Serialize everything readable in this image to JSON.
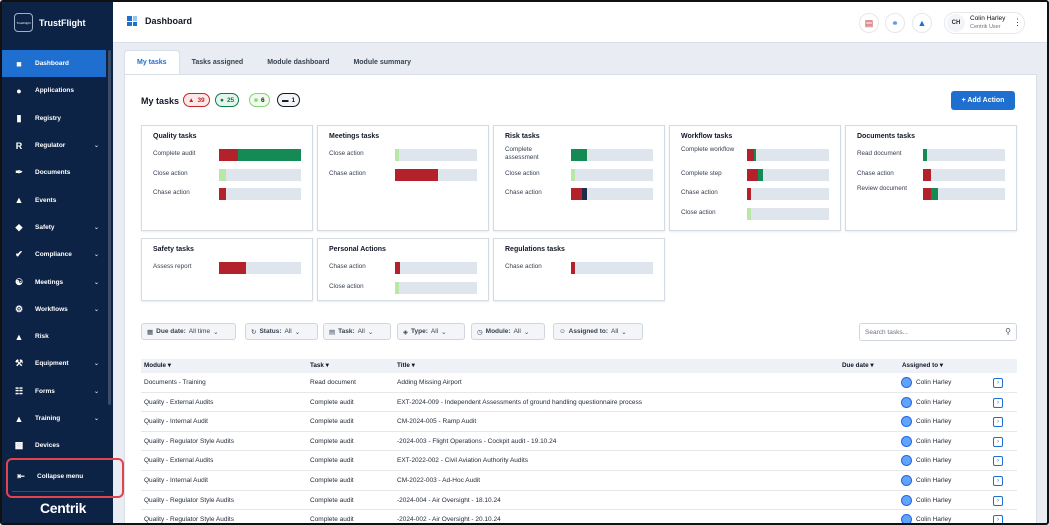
{
  "app": {
    "brand": "TrustFlight",
    "brand_logo_text": "TrustFlight",
    "footer_logo": "Centrik"
  },
  "sidebar": {
    "items": [
      {
        "label": "Dashboard",
        "icon": "dashboard-icon",
        "active": true,
        "chevron": false
      },
      {
        "label": "Applications",
        "icon": "person-icon",
        "active": false,
        "chevron": false
      },
      {
        "label": "Registry",
        "icon": "book-icon",
        "active": false,
        "chevron": false
      },
      {
        "label": "Regulator",
        "icon": "R",
        "active": false,
        "chevron": true
      },
      {
        "label": "Documents",
        "icon": "paperclip-icon",
        "active": false,
        "chevron": false
      },
      {
        "label": "Events",
        "icon": "megaphone-icon",
        "active": false,
        "chevron": false
      },
      {
        "label": "Safety",
        "icon": "shield-icon",
        "active": false,
        "chevron": true
      },
      {
        "label": "Compliance",
        "icon": "shield-check-icon",
        "active": false,
        "chevron": true
      },
      {
        "label": "Meetings",
        "icon": "people-icon",
        "active": false,
        "chevron": true
      },
      {
        "label": "Workflows",
        "icon": "workflow-icon",
        "active": false,
        "chevron": true
      },
      {
        "label": "Risk",
        "icon": "warning-icon",
        "active": false,
        "chevron": false
      },
      {
        "label": "Equipment",
        "icon": "wrench-icon",
        "active": false,
        "chevron": true
      },
      {
        "label": "Forms",
        "icon": "forms-icon",
        "active": false,
        "chevron": true
      },
      {
        "label": "Training",
        "icon": "graduation-icon",
        "active": false,
        "chevron": true
      },
      {
        "label": "Devices",
        "icon": "devices-icon",
        "active": false,
        "chevron": false
      }
    ],
    "collapse_label": "Collapse menu",
    "highlight_color": "#e0454d"
  },
  "header": {
    "title": "Dashboard",
    "user": {
      "initials": "CH",
      "name": "Colin Harley",
      "role": "Centrik User"
    }
  },
  "tabs": [
    {
      "label": "My tasks",
      "active": true
    },
    {
      "label": "Tasks assigned",
      "active": false
    },
    {
      "label": "Module dashboard",
      "active": false
    },
    {
      "label": "Module summary",
      "active": false
    }
  ],
  "my_tasks": {
    "title": "My tasks",
    "badges": [
      {
        "icon": "warning-icon",
        "count": "39",
        "color": "#c0272d",
        "bg": "#fde8e8"
      },
      {
        "icon": "circle-icon",
        "count": "25",
        "color": "#0d7a4a",
        "bg": "#e3f5ec"
      },
      {
        "icon": "square-light-icon",
        "count": "6",
        "color": "#86d17a",
        "bg": "#eefaea"
      },
      {
        "icon": "minus-box-icon",
        "count": "1",
        "color": "#111827",
        "bg": "#f3f4f6"
      }
    ],
    "add_action_label": "+ Add Action"
  },
  "colors": {
    "red": "#b3212b",
    "green": "#158a55",
    "light_green": "#b9e7a9",
    "navy": "#1c2b4a",
    "track": "#dfe5ec",
    "accent": "#1f6fd1"
  },
  "cards": [
    {
      "title": "Quality tasks",
      "rows": [
        {
          "label": "Complete audit",
          "segments": [
            {
              "pct": 23,
              "color": "#b3212b"
            },
            {
              "pct": 77,
              "color": "#158a55"
            }
          ]
        },
        {
          "label": "Close action",
          "segments": [
            {
              "pct": 8,
              "color": "#b9e7a9"
            }
          ]
        },
        {
          "label": "Chase action",
          "segments": [
            {
              "pct": 8,
              "color": "#b3212b"
            }
          ]
        }
      ]
    },
    {
      "title": "Meetings tasks",
      "rows": [
        {
          "label": "Close action",
          "segments": [
            {
              "pct": 5,
              "color": "#b9e7a9"
            }
          ]
        },
        {
          "label": "Chase action",
          "segments": [
            {
              "pct": 52,
              "color": "#b3212b"
            }
          ]
        }
      ]
    },
    {
      "title": "Risk tasks",
      "rows": [
        {
          "label": "Complete assessment",
          "segments": [
            {
              "pct": 19,
              "color": "#158a55"
            }
          ]
        },
        {
          "label": "Close action",
          "segments": [
            {
              "pct": 5,
              "color": "#b9e7a9"
            }
          ]
        },
        {
          "label": "Chase action",
          "segments": [
            {
              "pct": 14,
              "color": "#b3212b"
            },
            {
              "pct": 5,
              "color": "#1c2b4a"
            }
          ]
        }
      ]
    },
    {
      "title": "Workflow tasks",
      "rows": [
        {
          "label": "Complete workflow",
          "segments": [
            {
              "pct": 8,
              "color": "#b3212b"
            },
            {
              "pct": 3,
              "color": "#158a55"
            }
          ]
        },
        {
          "label": "Complete step",
          "segments": [
            {
              "pct": 14,
              "color": "#b3212b"
            },
            {
              "pct": 5,
              "color": "#158a55"
            }
          ]
        },
        {
          "label": "Chase action",
          "segments": [
            {
              "pct": 5,
              "color": "#b3212b"
            }
          ]
        },
        {
          "label": "Close action",
          "segments": [
            {
              "pct": 5,
              "color": "#b9e7a9"
            }
          ]
        }
      ]
    },
    {
      "title": "Documents tasks",
      "rows": [
        {
          "label": "Read document",
          "segments": [
            {
              "pct": 5,
              "color": "#158a55"
            }
          ]
        },
        {
          "label": "Chase action",
          "segments": [
            {
              "pct": 10,
              "color": "#b3212b"
            }
          ]
        },
        {
          "label": "Review document",
          "segments": [
            {
              "pct": 10,
              "color": "#b3212b"
            },
            {
              "pct": 8,
              "color": "#158a55"
            }
          ]
        }
      ]
    },
    {
      "title": "Safety tasks",
      "rows": [
        {
          "label": "Assess report",
          "segments": [
            {
              "pct": 33,
              "color": "#b3212b"
            }
          ]
        }
      ]
    },
    {
      "title": "Personal Actions",
      "rows": [
        {
          "label": "Chase action",
          "segments": [
            {
              "pct": 6,
              "color": "#b3212b"
            }
          ]
        },
        {
          "label": "Close action",
          "segments": [
            {
              "pct": 5,
              "color": "#b9e7a9"
            }
          ]
        }
      ]
    },
    {
      "title": "Regulations tasks",
      "rows": [
        {
          "label": "Chase action",
          "segments": [
            {
              "pct": 5,
              "color": "#b3212b"
            }
          ]
        }
      ]
    }
  ],
  "filters": [
    {
      "icon": "calendar-icon",
      "name": "Due date:",
      "value": "All time"
    },
    {
      "icon": "status-icon",
      "name": "Status:",
      "value": "All"
    },
    {
      "icon": "task-icon",
      "name": "Task:",
      "value": "All"
    },
    {
      "icon": "tag-icon",
      "name": "Type:",
      "value": "All"
    },
    {
      "icon": "module-icon",
      "name": "Module:",
      "value": "All"
    },
    {
      "icon": "user-icon",
      "name": "Assigned to:",
      "value": "All"
    }
  ],
  "search": {
    "placeholder": "Search tasks..."
  },
  "table": {
    "columns": {
      "module": "Module",
      "task": "Task",
      "title": "Title",
      "due": "Due date",
      "assigned": "Assigned to"
    },
    "rows": [
      {
        "module": "Documents - Training",
        "task": "Read document",
        "title": "Adding Missing Airport",
        "due": "",
        "assignee": "Colin Harley"
      },
      {
        "module": "Quality - External Audits",
        "task": "Complete audit",
        "title": "EXT-2024-009 - Independent Assessments of ground handling questionnaire process",
        "due": "",
        "assignee": "Colin Harley"
      },
      {
        "module": "Quality - Internal Audit",
        "task": "Complete audit",
        "title": "CM-2024-005 - Ramp Audit",
        "due": "",
        "assignee": "Colin Harley"
      },
      {
        "module": "Quality - Regulator Style Audits",
        "task": "Complete audit",
        "title": "-2024-003 - Flight Operations - Cockpit audit - 19.10.24",
        "due": "",
        "assignee": "Colin Harley"
      },
      {
        "module": "Quality - External Audits",
        "task": "Complete audit",
        "title": "EXT-2022-002 - Civil Aviation Authority Audits",
        "due": "",
        "assignee": "Colin Harley"
      },
      {
        "module": "Quality - Internal Audit",
        "task": "Complete audit",
        "title": "CM-2022-003 - Ad-Hoc Audit",
        "due": "",
        "assignee": "Colin Harley"
      },
      {
        "module": "Quality - Regulator Style Audits",
        "task": "Complete audit",
        "title": "-2024-004 - Air Oversight - 18.10.24",
        "due": "",
        "assignee": "Colin Harley"
      },
      {
        "module": "Quality - Regulator Style Audits",
        "task": "Complete audit",
        "title": "-2024-002 - Air Oversight - 20.10.24",
        "due": "",
        "assignee": "Colin Harley"
      }
    ]
  }
}
